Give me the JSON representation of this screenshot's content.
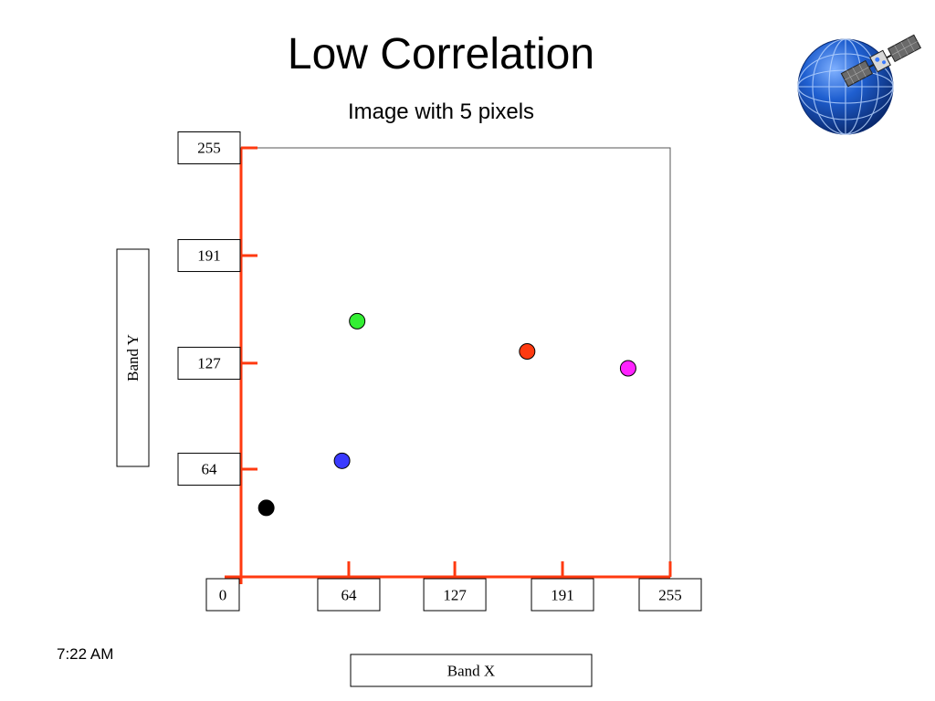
{
  "slide": {
    "title": "Low Correlation",
    "subtitle": "Image with 5 pixels",
    "time": "7:22 AM"
  },
  "chart_data": {
    "type": "scatter",
    "title": "Low Correlation",
    "subtitle": "Image with 5 pixels",
    "xlabel": "Band X",
    "ylabel": "Band Y",
    "xlim": [
      0,
      255
    ],
    "ylim": [
      0,
      255
    ],
    "x_ticks": [
      0,
      64,
      127,
      191,
      255
    ],
    "y_ticks": [
      64,
      127,
      191,
      255
    ],
    "points": [
      {
        "x": 15,
        "y": 41,
        "color": "#000000"
      },
      {
        "x": 60,
        "y": 69,
        "color": "#3a3aff"
      },
      {
        "x": 69,
        "y": 152,
        "color": "#33ee33"
      },
      {
        "x": 170,
        "y": 134,
        "color": "#ff3a10"
      },
      {
        "x": 230,
        "y": 124,
        "color": "#ff22ff"
      }
    ],
    "axis_color": "#ff3a10",
    "grid": false
  }
}
